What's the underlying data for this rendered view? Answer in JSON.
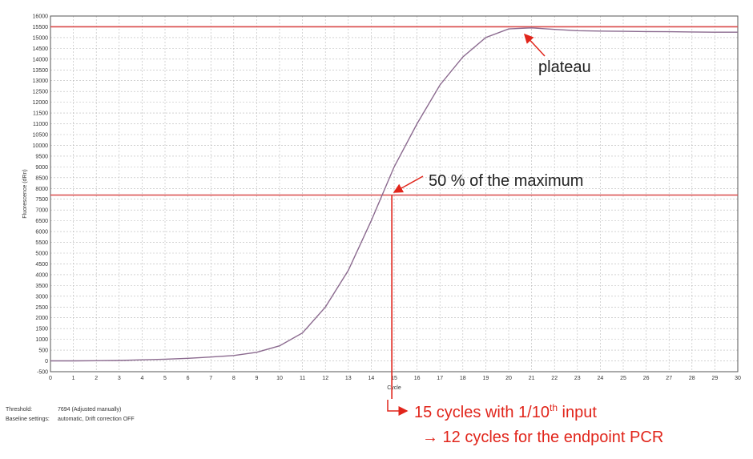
{
  "chart_data": {
    "type": "line",
    "xlabel": "Cycle",
    "ylabel": "Fluorescence (dRn)",
    "xlim": [
      0,
      30
    ],
    "ylim": [
      -500,
      16000
    ],
    "x_ticks": [
      "0",
      "1",
      "2",
      "3",
      "4",
      "5",
      "6",
      "7",
      "8",
      "9",
      "10",
      "11",
      "12",
      "13",
      "14",
      "15",
      "16",
      "17",
      "18",
      "19",
      "20",
      "21",
      "22",
      "23",
      "24",
      "25",
      "26",
      "27",
      "28",
      "29",
      "30"
    ],
    "y_ticks": [
      "16000",
      "15500",
      "15000",
      "14500",
      "14000",
      "13500",
      "13000",
      "12500",
      "12000",
      "11500",
      "11000",
      "10500",
      "10000",
      "9500",
      "9000",
      "8500",
      "8000",
      "7500",
      "7000",
      "6500",
      "6000",
      "5500",
      "5000",
      "4500",
      "4000",
      "3500",
      "3000",
      "2500",
      "2000",
      "1500",
      "1000",
      "500",
      "0",
      "-500"
    ],
    "grid": true,
    "series": [
      {
        "x": [
          0,
          1,
          2,
          3,
          4,
          5,
          6,
          7,
          8,
          9,
          10,
          11,
          12,
          13,
          14,
          15,
          16,
          17,
          18,
          19,
          20,
          21,
          22,
          23,
          24,
          25,
          26,
          27,
          28,
          29,
          30
        ],
        "values": [
          0,
          0,
          10,
          20,
          50,
          80,
          120,
          180,
          250,
          400,
          700,
          1300,
          2500,
          4200,
          6500,
          9000,
          11000,
          12800,
          14100,
          15000,
          15400,
          15450,
          15380,
          15320,
          15300,
          15290,
          15280,
          15270,
          15260,
          15250,
          15250
        ]
      }
    ],
    "reference_lines": [
      {
        "axis": "y",
        "value": 15500,
        "color": "#d94a4a"
      },
      {
        "axis": "y",
        "value": 7694,
        "color": "#d94a4a"
      },
      {
        "axis": "x",
        "value": 14.9,
        "y_from": -500,
        "y_to": 7694,
        "color": "#e1251b"
      }
    ]
  },
  "annotations": {
    "plateau": "plateau",
    "half_max": "50 % of the maximum",
    "line1_prefix": "15 cycles with 1/10",
    "line1_sup": "th",
    "line1_suffix": " input",
    "line2": "→ 12 cycles for the endpoint PCR"
  },
  "info": {
    "threshold_label": "Threshold:",
    "threshold_value": "7694 (Adjusted manually)",
    "baseline_label": "Baseline settings:",
    "baseline_value": "automatic, Drift correction OFF"
  },
  "colors": {
    "curve": "#8b6a8f",
    "ref": "#d94a4a",
    "annotation": "#e1251b",
    "grid": "#b8b8b8"
  }
}
